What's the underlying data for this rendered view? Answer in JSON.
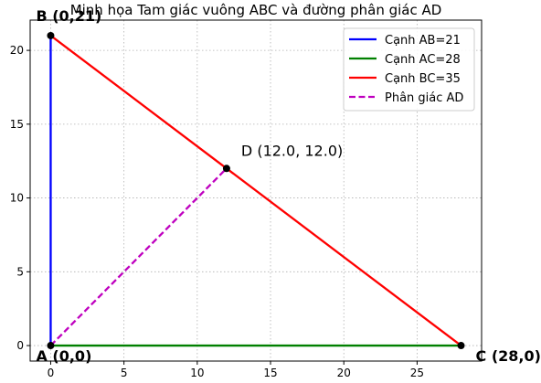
{
  "chart_data": {
    "type": "line",
    "title": "Minh họa Tam giác vuông ABC và đường phân giác AD",
    "xlabel": "",
    "ylabel": "",
    "xlim": [
      -1.4,
      29.4
    ],
    "ylim": [
      -1.05,
      22.05
    ],
    "xticks": [
      0,
      5,
      10,
      15,
      20,
      25
    ],
    "yticks": [
      0,
      5,
      10,
      15,
      20
    ],
    "grid": true,
    "grid_style": "dotted",
    "legend_position": "top-right",
    "series": [
      {
        "name": "Cạnh AB=21",
        "color": "#0000ff",
        "style": "solid",
        "points": [
          [
            0,
            0
          ],
          [
            0,
            21
          ]
        ]
      },
      {
        "name": "Cạnh AC=28",
        "color": "#008000",
        "style": "solid",
        "points": [
          [
            0,
            0
          ],
          [
            28,
            0
          ]
        ]
      },
      {
        "name": "Cạnh BC=35",
        "color": "#ff0000",
        "style": "solid",
        "points": [
          [
            0,
            21
          ],
          [
            28,
            0
          ]
        ]
      },
      {
        "name": "Phân giác AD",
        "color": "#bf00bf",
        "style": "dashed",
        "points": [
          [
            0,
            0
          ],
          [
            12,
            12
          ]
        ]
      }
    ],
    "markers": [
      {
        "x": 0,
        "y": 0
      },
      {
        "x": 0,
        "y": 21
      },
      {
        "x": 28,
        "y": 0
      },
      {
        "x": 12,
        "y": 12
      }
    ],
    "annotations": [
      {
        "text": "A (0,0)",
        "x": 0,
        "y": 0,
        "bold": true
      },
      {
        "text": "B (0,21)",
        "x": 0,
        "y": 21,
        "bold": true
      },
      {
        "text": "C (28,0)",
        "x": 28,
        "y": 0,
        "bold": true
      },
      {
        "text": "D (12.0, 12.0)",
        "x": 12,
        "y": 12,
        "bold": false
      }
    ]
  }
}
